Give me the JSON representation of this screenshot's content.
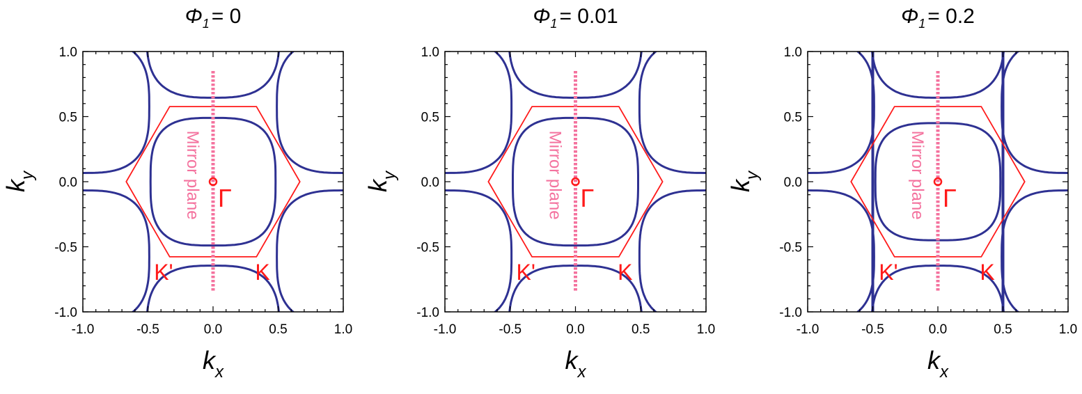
{
  "chart_data": [
    {
      "type": "line",
      "title_symbol": "Φ",
      "title_sub": "1",
      "title_value": "= 0",
      "xlabel": "k",
      "xlabel_sub": "x",
      "ylabel": "k",
      "ylabel_sub": "y",
      "xlim": [
        -1.0,
        1.0
      ],
      "ylim": [
        -1.0,
        1.0
      ],
      "xticks": [
        "-1.0",
        "-0.5",
        "0.0",
        "0.5",
        "1.0"
      ],
      "yticks": [
        "1.0",
        "0.5",
        "0.0",
        "-0.5",
        "-1.0"
      ],
      "grid": false,
      "brillouin_zone": [
        [
          -0.667,
          0
        ],
        [
          -0.333,
          0.577
        ],
        [
          0.333,
          0.577
        ],
        [
          0.667,
          0
        ],
        [
          0.333,
          -0.577
        ],
        [
          -0.333,
          -0.577
        ]
      ],
      "inner_pocket": {
        "center": [
          0,
          0
        ],
        "x_halfwidth": 0.48,
        "y_halfwidth": 0.49
      },
      "outer_pockets": [
        {
          "center": [
            0,
            1.155
          ]
        },
        {
          "center": [
            0,
            -1.155
          ]
        },
        {
          "center": [
            1.0,
            0.577
          ]
        },
        {
          "center": [
            -1.0,
            0.577
          ]
        },
        {
          "center": [
            1.0,
            -0.577
          ]
        },
        {
          "center": [
            -1.0,
            -0.577
          ]
        }
      ],
      "outer_pocket_halfwidth": 0.51,
      "vertical_lines_x": [],
      "mirror_plane": {
        "x": 0,
        "y_range": [
          -0.85,
          0.85
        ],
        "label": "Mirror plane"
      },
      "gamma": {
        "point": [
          0,
          0
        ],
        "label": "Γ"
      },
      "k_labels": [
        {
          "text": "K'",
          "point": [
            -0.38,
            -0.69
          ]
        },
        {
          "text": "K",
          "point": [
            0.38,
            -0.69
          ]
        }
      ],
      "colors": {
        "contour": "#2e3192",
        "zone": "#ff1a1a",
        "mirror": "#f4729e"
      }
    },
    {
      "type": "line",
      "title_symbol": "Φ",
      "title_sub": "1",
      "title_value": "= 0.01",
      "xlabel": "k",
      "xlabel_sub": "x",
      "ylabel": "k",
      "ylabel_sub": "y",
      "xlim": [
        -1.0,
        1.0
      ],
      "ylim": [
        -1.0,
        1.0
      ],
      "xticks": [
        "-1.0",
        "-0.5",
        "0.0",
        "0.5",
        "1.0"
      ],
      "yticks": [
        "1.0",
        "0.5",
        "0.0",
        "-0.5",
        "-1.0"
      ],
      "grid": false,
      "brillouin_zone": [
        [
          -0.667,
          0
        ],
        [
          -0.333,
          0.577
        ],
        [
          0.333,
          0.577
        ],
        [
          0.667,
          0
        ],
        [
          0.333,
          -0.577
        ],
        [
          -0.333,
          -0.577
        ]
      ],
      "inner_pocket": {
        "center": [
          0,
          0
        ],
        "x_halfwidth": 0.48,
        "y_halfwidth": 0.49
      },
      "outer_pockets": [
        {
          "center": [
            0,
            1.155
          ]
        },
        {
          "center": [
            0,
            -1.155
          ]
        },
        {
          "center": [
            1.0,
            0.577
          ]
        },
        {
          "center": [
            -1.0,
            0.577
          ]
        },
        {
          "center": [
            1.0,
            -0.577
          ]
        },
        {
          "center": [
            -1.0,
            -0.577
          ]
        }
      ],
      "outer_pocket_halfwidth": 0.51,
      "vertical_lines_x": [],
      "mirror_plane": {
        "x": 0,
        "y_range": [
          -0.85,
          0.85
        ],
        "label": "Mirror plane"
      },
      "gamma": {
        "point": [
          0,
          0
        ],
        "label": "Γ"
      },
      "k_labels": [
        {
          "text": "K'",
          "point": [
            -0.38,
            -0.69
          ]
        },
        {
          "text": "K",
          "point": [
            0.38,
            -0.69
          ]
        }
      ],
      "colors": {
        "contour": "#2e3192",
        "zone": "#ff1a1a",
        "mirror": "#f4729e"
      }
    },
    {
      "type": "line",
      "title_symbol": "Φ",
      "title_sub": "1",
      "title_value": "= 0.2",
      "xlabel": "k",
      "xlabel_sub": "x",
      "ylabel": "k",
      "ylabel_sub": "y",
      "xlim": [
        -1.0,
        1.0
      ],
      "ylim": [
        -1.0,
        1.0
      ],
      "xticks": [
        "-1.0",
        "-0.5",
        "0.0",
        "0.5",
        "1.0"
      ],
      "yticks": [
        "1.0",
        "0.5",
        "0.0",
        "-0.5",
        "-1.0"
      ],
      "grid": false,
      "brillouin_zone": [
        [
          -0.667,
          0
        ],
        [
          -0.333,
          0.577
        ],
        [
          0.333,
          0.577
        ],
        [
          0.667,
          0
        ],
        [
          0.333,
          -0.577
        ],
        [
          -0.333,
          -0.577
        ]
      ],
      "inner_pocket": {
        "center": [
          0,
          0
        ],
        "x_halfwidth": 0.48,
        "y_halfwidth": 0.45
      },
      "outer_pockets": [
        {
          "center": [
            0,
            1.155
          ]
        },
        {
          "center": [
            0,
            -1.155
          ]
        },
        {
          "center": [
            1.0,
            0.577
          ]
        },
        {
          "center": [
            -1.0,
            0.577
          ]
        },
        {
          "center": [
            1.0,
            -0.577
          ]
        },
        {
          "center": [
            -1.0,
            -0.577
          ]
        }
      ],
      "outer_pocket_halfwidth": 0.51,
      "vertical_lines_x": [
        -0.5,
        0.5
      ],
      "mirror_plane": {
        "x": 0,
        "y_range": [
          -0.85,
          0.85
        ],
        "label": "Mirror plane"
      },
      "gamma": {
        "point": [
          0,
          0
        ],
        "label": "Γ"
      },
      "k_labels": [
        {
          "text": "K'",
          "point": [
            -0.38,
            -0.69
          ]
        },
        {
          "text": "K",
          "point": [
            0.38,
            -0.69
          ]
        }
      ],
      "colors": {
        "contour": "#2e3192",
        "zone": "#ff1a1a",
        "mirror": "#f4729e"
      }
    }
  ]
}
